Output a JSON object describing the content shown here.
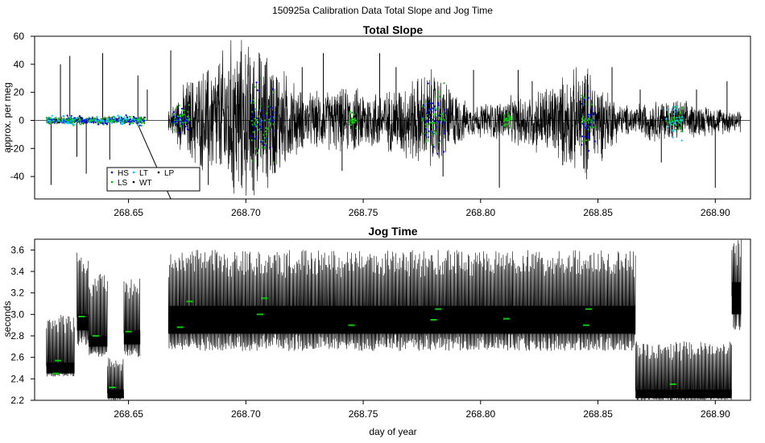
{
  "main_title": "150925a   Calibration Data Total Slope and Jog Time",
  "chart_data": [
    {
      "type": "line",
      "title": "Total Slope",
      "xlabel": "",
      "ylabel": "approx. per meg",
      "xlim": [
        268.61,
        268.915
      ],
      "ylim": [
        -56,
        60
      ],
      "xticks": [
        268.65,
        268.7,
        268.75,
        268.8,
        268.85,
        268.9
      ],
      "xtick_labels": [
        "268.65",
        "268.70",
        "268.75",
        "268.80",
        "268.85",
        "268.90"
      ],
      "yticks": [
        -40,
        -20,
        0,
        20,
        40,
        60
      ],
      "ytick_labels": [
        "-40",
        "-20",
        "0",
        "20",
        "40",
        "60"
      ],
      "reference_line_y": 0,
      "grid": false,
      "series_colors": {
        "WT": "#000000",
        "LT": "#00ccff",
        "LS": "#00cc00",
        "HS": "#0000ff",
        "LP": "#000000"
      },
      "legend": {
        "position": "bottom-left",
        "entries": [
          {
            "label": "HS",
            "color": "#0000ff"
          },
          {
            "label": "LT",
            "color": "#00ccff"
          },
          {
            "label": "LP",
            "color": "#000000"
          },
          {
            "label": "LS",
            "color": "#00cc00"
          },
          {
            "label": "WT",
            "color": "#000000"
          }
        ]
      },
      "envelope": [
        {
          "x": 268.615,
          "amp": 3
        },
        {
          "x": 268.64,
          "amp": 3
        },
        {
          "x": 268.655,
          "amp": 2
        },
        {
          "x": 268.668,
          "amp": 8
        },
        {
          "x": 268.675,
          "amp": 28
        },
        {
          "x": 268.685,
          "amp": 38
        },
        {
          "x": 268.695,
          "amp": 56
        },
        {
          "x": 268.71,
          "amp": 45
        },
        {
          "x": 268.725,
          "amp": 18
        },
        {
          "x": 268.745,
          "amp": 22
        },
        {
          "x": 268.76,
          "amp": 20
        },
        {
          "x": 268.78,
          "amp": 35
        },
        {
          "x": 268.795,
          "amp": 10
        },
        {
          "x": 268.81,
          "amp": 14
        },
        {
          "x": 268.83,
          "amp": 25
        },
        {
          "x": 268.845,
          "amp": 38
        },
        {
          "x": 268.86,
          "amp": 10
        },
        {
          "x": 268.88,
          "amp": 15
        },
        {
          "x": 268.895,
          "amp": 10
        },
        {
          "x": 268.91,
          "amp": 8
        }
      ],
      "spikes": [
        {
          "x": 268.617,
          "y": -46
        },
        {
          "x": 268.621,
          "y": 40
        },
        {
          "x": 268.625,
          "y": 46
        },
        {
          "x": 268.628,
          "y": -26
        },
        {
          "x": 268.632,
          "y": -38
        },
        {
          "x": 268.639,
          "y": 48
        },
        {
          "x": 268.642,
          "y": -28
        },
        {
          "x": 268.654,
          "y": 32
        },
        {
          "x": 268.658,
          "y": 22
        },
        {
          "x": 268.668,
          "y": 50
        },
        {
          "x": 268.684,
          "y": -46
        },
        {
          "x": 268.703,
          "y": -50
        },
        {
          "x": 268.724,
          "y": 38
        },
        {
          "x": 268.733,
          "y": 48
        },
        {
          "x": 268.741,
          "y": -36
        },
        {
          "x": 268.757,
          "y": 48
        },
        {
          "x": 268.764,
          "y": 38
        },
        {
          "x": 268.784,
          "y": -40
        },
        {
          "x": 268.797,
          "y": 36
        },
        {
          "x": 268.808,
          "y": -48
        },
        {
          "x": 268.816,
          "y": 36
        },
        {
          "x": 268.822,
          "y": 28
        },
        {
          "x": 268.835,
          "y": -32
        },
        {
          "x": 268.856,
          "y": 38
        },
        {
          "x": 268.868,
          "y": 22
        },
        {
          "x": 268.877,
          "y": -30
        },
        {
          "x": 268.892,
          "y": 22
        },
        {
          "x": 268.9,
          "y": -48
        },
        {
          "x": 268.905,
          "y": 28
        }
      ],
      "drop_line": {
        "x": [
          268.654,
          268.668
        ],
        "y": [
          -3,
          -56
        ]
      },
      "colored_clusters": [
        {
          "x": [
            268.615,
            268.657
          ],
          "amp": 4,
          "colors": [
            "#0000ff",
            "#00cc00",
            "#00ccff"
          ]
        },
        {
          "x": [
            268.669,
            268.676
          ],
          "amp": 14,
          "colors": [
            "#0000ff",
            "#00cc00"
          ]
        },
        {
          "x": [
            268.702,
            268.712
          ],
          "amp": 35,
          "colors": [
            "#0000ff",
            "#00cc00"
          ]
        },
        {
          "x": [
            268.744,
            268.747
          ],
          "amp": 8,
          "colors": [
            "#00cc00"
          ]
        },
        {
          "x": [
            268.775,
            268.785
          ],
          "amp": 30,
          "colors": [
            "#00cc00",
            "#0000ff"
          ]
        },
        {
          "x": [
            268.81,
            268.813
          ],
          "amp": 8,
          "colors": [
            "#00cc00"
          ]
        },
        {
          "x": [
            268.843,
            268.849
          ],
          "amp": 25,
          "colors": [
            "#00cc00",
            "#0000ff"
          ]
        },
        {
          "x": [
            268.879,
            268.886
          ],
          "amp": 15,
          "colors": [
            "#00cc00",
            "#00ccff"
          ]
        }
      ]
    },
    {
      "type": "line",
      "title": "Jog Time",
      "xlabel": "day of year",
      "ylabel": "seconds",
      "xlim": [
        268.61,
        268.915
      ],
      "ylim": [
        2.2,
        3.7
      ],
      "xticks": [
        268.65,
        268.7,
        268.75,
        268.8,
        268.85,
        268.9
      ],
      "xtick_labels": [
        "268.65",
        "268.70",
        "268.75",
        "268.80",
        "268.85",
        "268.90"
      ],
      "yticks": [
        2.2,
        2.4,
        2.6,
        2.8,
        3.0,
        3.2,
        3.4,
        3.6
      ],
      "ytick_labels": [
        "2.2",
        "2.4",
        "2.6",
        "2.8",
        "3.0",
        "3.2",
        "3.4",
        "3.6"
      ],
      "grid": false,
      "segments": [
        {
          "x": [
            268.615,
            268.627
          ],
          "low": 2.42,
          "high": 3.0,
          "band": [
            2.45,
            2.55
          ]
        },
        {
          "x": [
            268.628,
            268.633
          ],
          "low": 2.7,
          "high": 3.6,
          "band": [
            2.85,
            3.0
          ]
        },
        {
          "x": [
            268.633,
            268.641
          ],
          "low": 2.6,
          "high": 3.4,
          "band": [
            2.7,
            2.8
          ]
        },
        {
          "x": [
            268.641,
            268.648
          ],
          "low": 2.2,
          "high": 2.6,
          "band": [
            2.22,
            2.3
          ]
        },
        {
          "x": [
            268.648,
            268.655
          ],
          "low": 2.6,
          "high": 3.35,
          "band": [
            2.72,
            2.85
          ]
        },
        {
          "x": [
            268.667,
            268.866
          ],
          "low": 2.66,
          "high": 3.6,
          "band": [
            2.82,
            3.08
          ]
        },
        {
          "x": [
            268.866,
            268.907
          ],
          "low": 2.2,
          "high": 2.75,
          "band": [
            2.22,
            2.3
          ]
        },
        {
          "x": [
            268.907,
            268.911
          ],
          "low": 2.85,
          "high": 3.7,
          "band": [
            3.0,
            3.3
          ]
        }
      ],
      "green_markers": [
        {
          "x": 268.619,
          "y": 2.45
        },
        {
          "x": 268.62,
          "y": 2.57
        },
        {
          "x": 268.63,
          "y": 2.98
        },
        {
          "x": 268.636,
          "y": 2.8
        },
        {
          "x": 268.643,
          "y": 2.32
        },
        {
          "x": 268.65,
          "y": 2.84
        },
        {
          "x": 268.672,
          "y": 2.88
        },
        {
          "x": 268.676,
          "y": 3.12
        },
        {
          "x": 268.706,
          "y": 3.0
        },
        {
          "x": 268.708,
          "y": 3.15
        },
        {
          "x": 268.745,
          "y": 2.9
        },
        {
          "x": 268.78,
          "y": 2.95
        },
        {
          "x": 268.782,
          "y": 3.05
        },
        {
          "x": 268.811,
          "y": 2.96
        },
        {
          "x": 268.845,
          "y": 2.9
        },
        {
          "x": 268.846,
          "y": 3.05
        },
        {
          "x": 268.882,
          "y": 2.35
        }
      ]
    }
  ]
}
